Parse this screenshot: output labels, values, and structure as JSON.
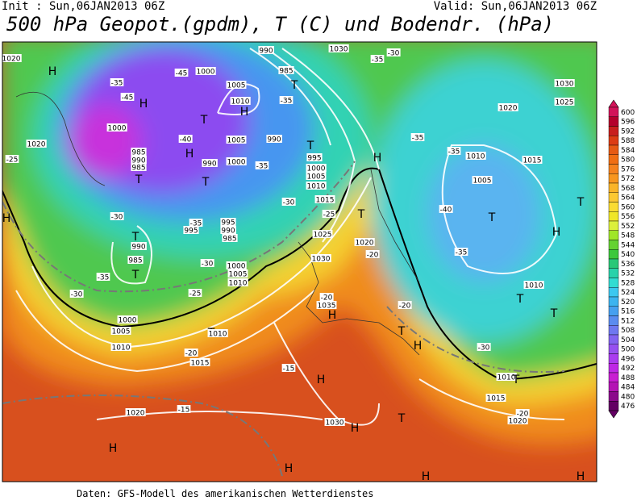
{
  "header": {
    "init": "Init : Sun,06JAN2013 06Z",
    "valid": "Valid: Sun,06JAN2013 06Z",
    "title": "500 hPa Geopot.(gpdm), T (C) und Bodendr. (hPa)"
  },
  "map": {
    "labels": [
      "1020",
      "H",
      "-45",
      "1000",
      "990",
      "985",
      "T",
      "1030",
      "-35",
      "-30",
      "-35",
      "-45",
      "H",
      "1005",
      "1010",
      "H",
      "-35",
      "T",
      "1000",
      "-40",
      "H",
      "1005",
      "990",
      "1020",
      "-25",
      "985",
      "990",
      "985",
      "T",
      "990",
      "T",
      "1000",
      "-35",
      "T",
      "995",
      "1000",
      "1005",
      "1010",
      "1015",
      "-30",
      "H",
      "-30",
      "-35",
      "995",
      "995",
      "990",
      "985",
      "-25",
      "T",
      "1025",
      "1020",
      "-20",
      "T",
      "990",
      "985",
      "T",
      "-30",
      "1000",
      "1005",
      "1010",
      "1030",
      "-35",
      "-30",
      "-25",
      "-20",
      "1035",
      "H",
      "-20",
      "1000",
      "1005",
      "T",
      "1010",
      "1010",
      "-20",
      "1015",
      "-15",
      "H",
      "T",
      "H",
      "1020",
      "-15",
      "1030",
      "H",
      "T",
      "H",
      "H",
      "H",
      "H",
      "1030",
      "1025",
      "1020",
      "-35",
      "-35",
      "1010",
      "1015",
      "1005",
      "-40",
      "T",
      "H",
      "T",
      "-35",
      "1010",
      "T",
      "T",
      "-30",
      "1010",
      "T",
      "1015",
      "1020",
      "-20",
      "H"
    ]
  },
  "colorbar": {
    "levels": [
      600,
      596,
      592,
      588,
      584,
      580,
      576,
      572,
      568,
      564,
      560,
      556,
      552,
      548,
      544,
      540,
      536,
      532,
      528,
      524,
      520,
      516,
      512,
      508,
      504,
      500,
      496,
      492,
      488,
      484,
      480,
      476
    ],
    "colors": [
      "#d2145a",
      "#b4002d",
      "#c81e1e",
      "#dc3c14",
      "#e65a14",
      "#f06e14",
      "#f5821e",
      "#f8961e",
      "#fab428",
      "#fcc832",
      "#fadc32",
      "#f0e628",
      "#dcf03c",
      "#a0e628",
      "#64d232",
      "#3cc83c",
      "#28c878",
      "#28d2aa",
      "#32dcd2",
      "#3cc8f0",
      "#3cb4f0",
      "#46a0f0",
      "#5a8cf0",
      "#6e78f0",
      "#8264f0",
      "#9650f0",
      "#aa3cf0",
      "#be28e6",
      "#c81ed2",
      "#b414b4",
      "#8c0a8c",
      "#640064"
    ]
  },
  "footer": "Daten: GFS-Modell des amerikanischen Wetterdienstes"
}
